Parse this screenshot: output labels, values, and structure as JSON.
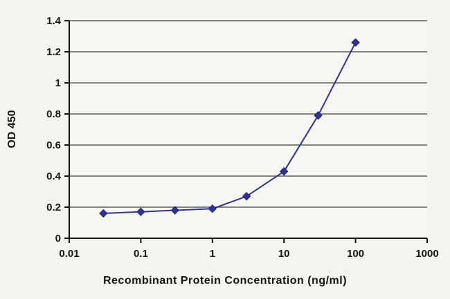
{
  "chart_data": {
    "type": "line",
    "title": "",
    "xlabel": "Recombinant Protein Concentration (ng/ml)",
    "ylabel": "OD 450",
    "x_scale": "log",
    "xlim": [
      0.01,
      1000
    ],
    "x_ticks": [
      0.01,
      0.1,
      1,
      10,
      100,
      1000
    ],
    "ylim": [
      0,
      1.4
    ],
    "y_ticks": [
      0,
      0.2,
      0.4,
      0.6,
      0.8,
      1,
      1.2,
      1.4
    ],
    "grid": "horizontal",
    "legend": "none",
    "series": [
      {
        "name": "OD 450",
        "marker": "diamond",
        "color": "#31319b",
        "marker_color": "#28287d",
        "x": [
          0.03,
          0.1,
          0.3,
          1,
          3,
          10,
          30,
          100
        ],
        "y": [
          0.16,
          0.17,
          0.18,
          0.19,
          0.27,
          0.43,
          0.79,
          1.26
        ]
      }
    ],
    "colors": {
      "background": "#f3f3ef",
      "plot_background": "#f6f6f2",
      "grid_color": "#3c3c3c",
      "axis_color": "#111111"
    }
  }
}
